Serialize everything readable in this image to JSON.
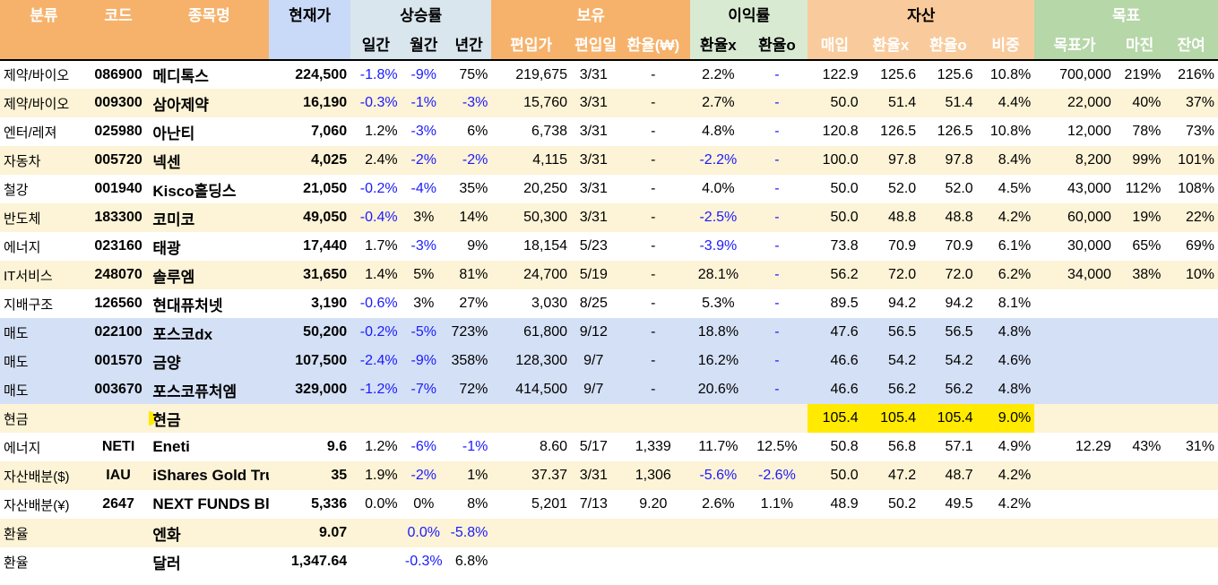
{
  "colors": {
    "orange": "#f6b26b",
    "blue": "#c9daf8",
    "green": "#d9ead3",
    "row_yellow": "#fdf3d6",
    "row_blue": "#d4e0f5",
    "negative": "#1a1aff",
    "highlight": "#ffea00"
  },
  "header": {
    "top": {
      "category": "분류",
      "code": "코드",
      "name": "종목명",
      "price": "현재가",
      "growth": "상승률",
      "holding": "보유",
      "profit": "이익률",
      "asset": "자산",
      "target": "목표"
    },
    "sub": {
      "daily": "일간",
      "monthly": "월간",
      "yearly": "년간",
      "buy_price": "편입가",
      "buy_date": "편입일",
      "fx_rate": "환율(₩)",
      "profit_x": "환율x",
      "profit_o": "환율o",
      "purchase": "매입",
      "asset_x": "환율x",
      "asset_o": "환율o",
      "weight": "비중",
      "target_price": "목표가",
      "margin": "마진",
      "remain": "잔여"
    }
  },
  "rows": [
    {
      "style": "W",
      "cat": "제약/바이오",
      "code": "086900",
      "name": "메디톡스",
      "price": "224,500",
      "d": "-1.8%",
      "m": "-9%",
      "y": "75%",
      "bp": "219,675",
      "bd": "3/31",
      "fx": "-",
      "px": "2.2%",
      "po": "-",
      "buy": "122.9",
      "ax": "125.6",
      "ao": "125.6",
      "w": "10.8%",
      "tp": "700,000",
      "mg": "219%",
      "rm": "216%"
    },
    {
      "style": "Y",
      "cat": "제약/바이오",
      "code": "009300",
      "name": "삼아제약",
      "price": "16,190",
      "d": "-0.3%",
      "m": "-1%",
      "y": "-3%",
      "bp": "15,760",
      "bd": "3/31",
      "fx": "-",
      "px": "2.7%",
      "po": "-",
      "buy": "50.0",
      "ax": "51.4",
      "ao": "51.4",
      "w": "4.4%",
      "tp": "22,000",
      "mg": "40%",
      "rm": "37%"
    },
    {
      "style": "W",
      "cat": "엔터/레져",
      "code": "025980",
      "name": "아난티",
      "price": "7,060",
      "d": "1.2%",
      "m": "-3%",
      "y": "6%",
      "bp": "6,738",
      "bd": "3/31",
      "fx": "-",
      "px": "4.8%",
      "po": "-",
      "buy": "120.8",
      "ax": "126.5",
      "ao": "126.5",
      "w": "10.8%",
      "tp": "12,000",
      "mg": "78%",
      "rm": "73%"
    },
    {
      "style": "Y",
      "cat": "자동차",
      "code": "005720",
      "name": "넥센",
      "price": "4,025",
      "d": "2.4%",
      "m": "-2%",
      "y": "-2%",
      "bp": "4,115",
      "bd": "3/31",
      "fx": "-",
      "px": "-2.2%",
      "po": "-",
      "buy": "100.0",
      "ax": "97.8",
      "ao": "97.8",
      "w": "8.4%",
      "tp": "8,200",
      "mg": "99%",
      "rm": "101%"
    },
    {
      "style": "W",
      "cat": "철강",
      "code": "001940",
      "name": "Kisco홀딩스",
      "price": "21,050",
      "d": "-0.2%",
      "m": "-4%",
      "y": "35%",
      "bp": "20,250",
      "bd": "3/31",
      "fx": "-",
      "px": "4.0%",
      "po": "-",
      "buy": "50.0",
      "ax": "52.0",
      "ao": "52.0",
      "w": "4.5%",
      "tp": "43,000",
      "mg": "112%",
      "rm": "108%"
    },
    {
      "style": "Y",
      "cat": "반도체",
      "code": "183300",
      "name": "코미코",
      "price": "49,050",
      "d": "-0.4%",
      "m": "3%",
      "y": "14%",
      "bp": "50,300",
      "bd": "3/31",
      "fx": "-",
      "px": "-2.5%",
      "po": "-",
      "buy": "50.0",
      "ax": "48.8",
      "ao": "48.8",
      "w": "4.2%",
      "tp": "60,000",
      "mg": "19%",
      "rm": "22%"
    },
    {
      "style": "W",
      "cat": "에너지",
      "code": "023160",
      "name": "태광",
      "price": "17,440",
      "d": "1.7%",
      "m": "-3%",
      "y": "9%",
      "bp": "18,154",
      "bd": "5/23",
      "fx": "-",
      "px": "-3.9%",
      "po": "-",
      "buy": "73.8",
      "ax": "70.9",
      "ao": "70.9",
      "w": "6.1%",
      "tp": "30,000",
      "mg": "65%",
      "rm": "69%"
    },
    {
      "style": "Y",
      "cat": "IT서비스",
      "code": "248070",
      "name": "솔루엠",
      "price": "31,650",
      "d": "1.4%",
      "m": "5%",
      "y": "81%",
      "bp": "24,700",
      "bd": "5/19",
      "fx": "-",
      "px": "28.1%",
      "po": "-",
      "buy": "56.2",
      "ax": "72.0",
      "ao": "72.0",
      "w": "6.2%",
      "tp": "34,000",
      "mg": "38%",
      "rm": "10%"
    },
    {
      "style": "W",
      "cat": "지배구조",
      "code": "126560",
      "name": "현대퓨처넷",
      "price": "3,190",
      "d": "-0.6%",
      "m": "3%",
      "y": "27%",
      "bp": "3,030",
      "bd": "8/25",
      "fx": "-",
      "px": "5.3%",
      "po": "-",
      "buy": "89.5",
      "ax": "94.2",
      "ao": "94.2",
      "w": "8.1%",
      "tp": "",
      "mg": "",
      "rm": ""
    },
    {
      "style": "B",
      "cat": "매도",
      "code": "022100",
      "name": "포스코dx",
      "price": "50,200",
      "d": "-0.2%",
      "m": "-5%",
      "y": "723%",
      "bp": "61,800",
      "bd": "9/12",
      "fx": "-",
      "px": "18.8%",
      "po": "-",
      "buy": "47.6",
      "ax": "56.5",
      "ao": "56.5",
      "w": "4.8%",
      "tp": "",
      "mg": "",
      "rm": ""
    },
    {
      "style": "B",
      "cat": "매도",
      "code": "001570",
      "name": "금양",
      "price": "107,500",
      "d": "-2.4%",
      "m": "-9%",
      "y": "358%",
      "bp": "128,300",
      "bd": "9/7",
      "fx": "-",
      "px": "16.2%",
      "po": "-",
      "buy": "46.6",
      "ax": "54.2",
      "ao": "54.2",
      "w": "4.6%",
      "tp": "",
      "mg": "",
      "rm": ""
    },
    {
      "style": "B",
      "cat": "매도",
      "code": "003670",
      "name": "포스코퓨처엠",
      "price": "329,000",
      "d": "-1.2%",
      "m": "-7%",
      "y": "72%",
      "bp": "414,500",
      "bd": "9/7",
      "fx": "-",
      "px": "20.6%",
      "po": "-",
      "buy": "46.6",
      "ax": "56.2",
      "ao": "56.2",
      "w": "4.8%",
      "tp": "",
      "mg": "",
      "rm": ""
    },
    {
      "style": "Y",
      "cash": true,
      "cat": "현금",
      "code": "",
      "name": "현금",
      "price": "",
      "d": "",
      "m": "",
      "y": "",
      "bp": "",
      "bd": "",
      "fx": "",
      "px": "",
      "po": "",
      "buy": "105.4",
      "ax": "105.4",
      "ao": "105.4",
      "w": "9.0%",
      "tp": "",
      "mg": "",
      "rm": ""
    },
    {
      "style": "W",
      "cat": "에너지",
      "code": "NETI",
      "name": "Eneti",
      "price": "9.6",
      "d": "1.2%",
      "m": "-6%",
      "y": "-1%",
      "bp": "8.60",
      "bd": "5/17",
      "fx": "1,339",
      "px": "11.7%",
      "po": "12.5%",
      "buy": "50.8",
      "ax": "56.8",
      "ao": "57.1",
      "w": "4.9%",
      "tp": "12.29",
      "mg": "43%",
      "rm": "31%"
    },
    {
      "style": "Y",
      "cat": "자산배분($)",
      "code": "IAU",
      "name": "iShares Gold Tru",
      "price": "35",
      "d": "1.9%",
      "m": "-2%",
      "y": "1%",
      "bp": "37.37",
      "bd": "3/31",
      "fx": "1,306",
      "px": "-5.6%",
      "po": "-2.6%",
      "buy": "50.0",
      "ax": "47.2",
      "ao": "48.7",
      "w": "4.2%",
      "tp": "",
      "mg": "",
      "rm": ""
    },
    {
      "style": "W",
      "cat": "자산배분(¥)",
      "code": "2647",
      "name": "NEXT FUNDS Bl",
      "price": "5,336",
      "d": "0.0%",
      "m": "0%",
      "y": "8%",
      "bp": "5,201",
      "bd": "7/13",
      "fx": "9.20",
      "px": "2.6%",
      "po": "1.1%",
      "buy": "48.9",
      "ax": "50.2",
      "ao": "49.5",
      "w": "4.2%",
      "tp": "",
      "mg": "",
      "rm": ""
    },
    {
      "style": "Y",
      "fxrow": true,
      "cat": "환율",
      "code": "",
      "name": "엔화",
      "price": "9.07",
      "d": "",
      "m": "0.0%",
      "y": "-5.8%"
    },
    {
      "style": "W",
      "fxrow": true,
      "cat": "환율",
      "code": "",
      "name": "달러",
      "price": "1,347.64",
      "d": "",
      "m": "-0.3%",
      "y": "6.8%"
    }
  ]
}
